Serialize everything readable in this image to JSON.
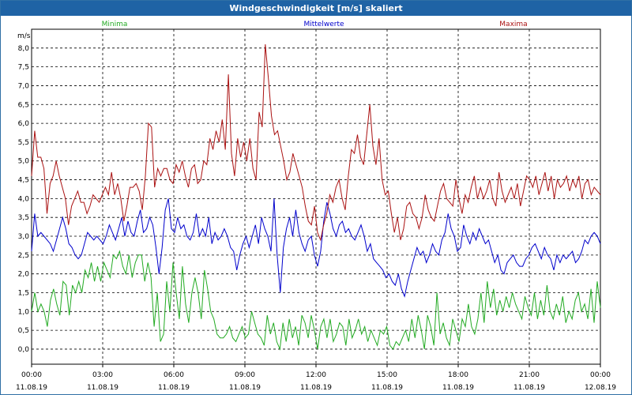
{
  "window": {
    "title": "Windgeschwindigkeit [m/s] skaliert"
  },
  "chart_data": {
    "type": "line",
    "title": "Windgeschwindigkeit [m/s] skaliert",
    "ylabel": "m/s",
    "ylim": [
      -0.4,
      8.5
    ],
    "yticks": [
      "0,0",
      "0,5",
      "1,0",
      "1,5",
      "2,0",
      "2,5",
      "3,0",
      "3,5",
      "4,0",
      "4,5",
      "5,0",
      "5,5",
      "6,0",
      "6,5",
      "7,0",
      "7,5",
      "8,0"
    ],
    "ytick_values": [
      0,
      0.5,
      1,
      1.5,
      2,
      2.5,
      3,
      3.5,
      4,
      4.5,
      5,
      5.5,
      6,
      6.5,
      7,
      7.5,
      8
    ],
    "xlim": [
      0,
      24
    ],
    "xticks": [
      {
        "time": "00:00",
        "date": "11.08.19"
      },
      {
        "time": "03:00",
        "date": "11.08.19"
      },
      {
        "time": "06:00",
        "date": "11.08.19"
      },
      {
        "time": "09:00",
        "date": "11.08.19"
      },
      {
        "time": "12:00",
        "date": "11.08.19"
      },
      {
        "time": "15:00",
        "date": "11.08.19"
      },
      {
        "time": "18:00",
        "date": "11.08.19"
      },
      {
        "time": "21:00",
        "date": "11.08.19"
      },
      {
        "time": "00:00",
        "date": "12.08.19"
      }
    ],
    "grid": true,
    "legend_placement": "top",
    "series": [
      {
        "name": "Minima",
        "color": "#22aa22",
        "values": [
          1.0,
          1.5,
          1.0,
          1.2,
          1.0,
          0.6,
          1.3,
          1.6,
          1.2,
          0.9,
          1.8,
          1.7,
          0.9,
          1.7,
          1.5,
          1.8,
          1.5,
          2.1,
          1.9,
          2.3,
          1.8,
          2.2,
          1.8,
          2.3,
          2.1,
          1.9,
          2.5,
          2.4,
          2.6,
          2.2,
          2.0,
          2.5,
          1.9,
          2.3,
          2.5,
          2.5,
          1.8,
          2.3,
          1.9,
          0.6,
          1.5,
          0.2,
          0.4,
          1.8,
          1.0,
          2.3,
          1.5,
          0.8,
          2.2,
          1.2,
          0.7,
          1.5,
          1.9,
          1.5,
          0.8,
          2.1,
          1.6,
          1.0,
          0.8,
          0.4,
          0.3,
          0.3,
          0.4,
          0.6,
          0.3,
          0.2,
          0.4,
          0.6,
          0.3,
          0.4,
          1.0,
          0.7,
          0.4,
          0.3,
          0.1,
          0.9,
          0.4,
          0.7,
          0.2,
          0.0,
          0.7,
          0.2,
          0.8,
          0.3,
          0.6,
          0.1,
          0.9,
          0.7,
          0.3,
          0.9,
          0.5,
          0.0,
          0.6,
          0.8,
          0.3,
          0.8,
          0.2,
          0.4,
          0.7,
          0.6,
          0.1,
          0.8,
          0.3,
          0.5,
          0.8,
          0.4,
          0.6,
          0.2,
          0.5,
          0.3,
          0.1,
          0.5,
          0.4,
          0.6,
          0.1,
          0.0,
          0.2,
          0.1,
          0.3,
          0.5,
          0.2,
          0.8,
          0.3,
          0.9,
          0.5,
          0.0,
          0.9,
          0.6,
          0.1,
          1.5,
          0.4,
          0.7,
          0.3,
          0.1,
          0.8,
          0.5,
          0.2,
          0.8,
          0.6,
          1.2,
          0.6,
          0.4,
          0.8,
          1.5,
          0.7,
          1.8,
          1.1,
          1.6,
          0.9,
          1.3,
          1.0,
          1.4,
          1.1,
          1.5,
          1.2,
          1.0,
          0.8,
          1.4,
          1.1,
          0.9,
          1.5,
          0.8,
          1.3,
          0.9,
          1.7,
          1.0,
          0.8,
          1.2,
          0.9,
          1.4,
          0.7,
          1.0,
          0.8,
          1.3,
          1.5,
          1.0,
          1.2,
          0.8,
          1.6,
          0.7,
          1.8,
          1.1
        ]
      },
      {
        "name": "Mittelwerte",
        "color": "#0000cc",
        "values": [
          2.6,
          3.6,
          3.0,
          3.1,
          3.0,
          2.9,
          2.8,
          2.6,
          2.9,
          3.2,
          3.5,
          3.2,
          2.8,
          2.7,
          2.5,
          2.4,
          2.5,
          2.8,
          3.1,
          3.0,
          2.9,
          3.0,
          2.9,
          2.8,
          3.0,
          3.3,
          3.1,
          2.9,
          3.2,
          3.5,
          3.0,
          3.4,
          3.1,
          3.0,
          3.4,
          3.7,
          3.1,
          3.2,
          3.5,
          3.3,
          2.7,
          2.0,
          2.7,
          3.7,
          4.0,
          3.2,
          3.1,
          3.5,
          3.2,
          3.3,
          3.0,
          2.9,
          3.1,
          3.6,
          3.0,
          3.2,
          3.0,
          3.5,
          2.8,
          3.1,
          2.9,
          3.0,
          3.2,
          3.0,
          2.7,
          2.6,
          2.1,
          2.5,
          2.8,
          3.0,
          2.7,
          3.0,
          3.3,
          2.8,
          3.5,
          3.2,
          3.0,
          2.6,
          4.0,
          2.5,
          1.5,
          2.7,
          3.2,
          3.5,
          3.0,
          3.7,
          3.1,
          2.8,
          2.6,
          2.9,
          3.0,
          2.5,
          2.2,
          2.6,
          3.4,
          3.9,
          3.6,
          3.2,
          3.0,
          3.3,
          3.4,
          3.1,
          3.2,
          3.0,
          2.9,
          3.1,
          3.3,
          3.0,
          2.6,
          2.8,
          2.4,
          2.3,
          2.2,
          2.1,
          1.9,
          2.0,
          1.8,
          1.7,
          2.0,
          1.6,
          1.4,
          1.8,
          2.1,
          2.4,
          2.7,
          2.5,
          2.6,
          2.3,
          2.5,
          2.8,
          2.6,
          2.5,
          2.9,
          3.1,
          3.6,
          3.2,
          3.0,
          2.6,
          2.7,
          3.3,
          3.0,
          2.8,
          3.1,
          2.9,
          3.2,
          3.0,
          2.8,
          2.9,
          2.6,
          2.3,
          2.5,
          2.1,
          2.0,
          2.3,
          2.4,
          2.5,
          2.3,
          2.2,
          2.2,
          2.4,
          2.5,
          2.7,
          2.8,
          2.6,
          2.4,
          2.7,
          2.5,
          2.4,
          2.1,
          2.5,
          2.3,
          2.5,
          2.4,
          2.5,
          2.6,
          2.3,
          2.4,
          2.6,
          2.9,
          2.8,
          3.0,
          3.1,
          3.0,
          2.8
        ]
      },
      {
        "name": "Maxima",
        "color": "#aa1111",
        "values": [
          4.6,
          5.8,
          5.1,
          5.1,
          4.8,
          3.6,
          4.4,
          4.6,
          5.0,
          4.6,
          4.3,
          4.0,
          3.3,
          3.8,
          4.0,
          4.2,
          3.9,
          3.9,
          3.6,
          3.8,
          4.1,
          4.0,
          3.9,
          4.1,
          4.3,
          4.1,
          4.7,
          4.1,
          4.4,
          4.0,
          3.4,
          3.8,
          4.3,
          4.3,
          4.4,
          4.2,
          3.7,
          4.6,
          6.0,
          5.9,
          4.3,
          4.8,
          4.6,
          4.8,
          4.8,
          4.5,
          4.4,
          4.9,
          4.7,
          5.0,
          4.6,
          4.3,
          4.8,
          4.9,
          4.4,
          4.5,
          5.0,
          4.9,
          5.6,
          5.3,
          5.8,
          5.5,
          6.1,
          5.3,
          7.3,
          5.2,
          4.6,
          5.6,
          5.1,
          5.5,
          5.0,
          5.6,
          4.8,
          4.5,
          6.3,
          5.9,
          8.1,
          7.2,
          6.2,
          5.7,
          5.8,
          5.4,
          5.0,
          4.5,
          4.7,
          5.2,
          4.9,
          4.6,
          4.3,
          3.8,
          3.4,
          3.3,
          3.8,
          3.1,
          2.9,
          3.3,
          3.6,
          4.1,
          3.9,
          4.3,
          4.5,
          4.0,
          3.7,
          4.6,
          5.3,
          5.2,
          5.7,
          5.1,
          4.9,
          5.7,
          6.5,
          5.4,
          4.9,
          5.6,
          4.5,
          4.1,
          4.2,
          3.6,
          3.1,
          3.5,
          2.9,
          3.2,
          3.8,
          3.9,
          3.6,
          3.5,
          3.2,
          3.5,
          4.1,
          3.7,
          3.5,
          3.4,
          3.8,
          4.2,
          4.4,
          4.0,
          3.9,
          3.8,
          4.5,
          4.0,
          3.6,
          4.1,
          3.9,
          4.3,
          4.6,
          4.0,
          4.3,
          4.0,
          4.2,
          4.5,
          4.0,
          3.8,
          4.7,
          4.2,
          3.9,
          4.1,
          4.3,
          4.0,
          4.4,
          3.8,
          4.2,
          4.6,
          4.5,
          4.3,
          4.6,
          4.1,
          4.4,
          4.7,
          4.2,
          4.6,
          4.0,
          4.5,
          4.3,
          4.4,
          4.6,
          4.2,
          4.5,
          4.3,
          4.6,
          4.0,
          4.4,
          4.5,
          4.1,
          4.3,
          4.2,
          4.1
        ]
      }
    ]
  }
}
